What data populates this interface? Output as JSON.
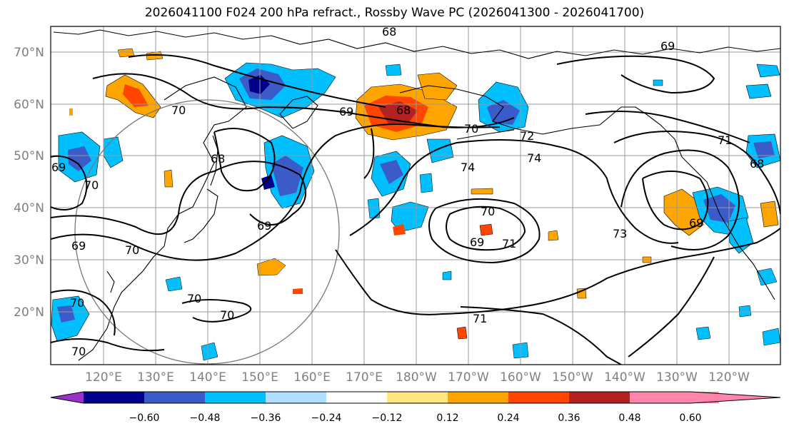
{
  "title": "2026041100 F024 200 hPa refract., Rossby Wave PC (2026041300 - 2026041700)",
  "lat_labels": [
    "70°N",
    "60°N",
    "50°N",
    "40°N",
    "30°N",
    "20°N"
  ],
  "lon_labels": [
    "120°E",
    "130°E",
    "140°E",
    "150°E",
    "160°E",
    "170°E",
    "180°W",
    "170°W",
    "160°W",
    "150°W",
    "140°W",
    "130°W",
    "120°W"
  ],
  "colorbar": {
    "ticks": [
      "−0.60",
      "−0.48",
      "−0.36",
      "−0.24",
      "−0.12",
      "0.12",
      "0.24",
      "0.36",
      "0.48",
      "0.60"
    ],
    "colors": [
      "#9932cc",
      "#00008b",
      "#3a5bc8",
      "#00bfff",
      "#b0e0ff",
      "#ffffff",
      "#ffe680",
      "#ffa500",
      "#ff4500",
      "#b22222",
      "#ff85aa"
    ]
  },
  "contour_labels": [
    "68",
    "69",
    "68",
    "69",
    "70",
    "70",
    "72",
    "74",
    "74",
    "69",
    "69",
    "70",
    "68",
    "69",
    "70",
    "69",
    "70",
    "71",
    "69",
    "73",
    "68",
    "71",
    "70",
    "70",
    "71",
    "70",
    "70"
  ]
}
